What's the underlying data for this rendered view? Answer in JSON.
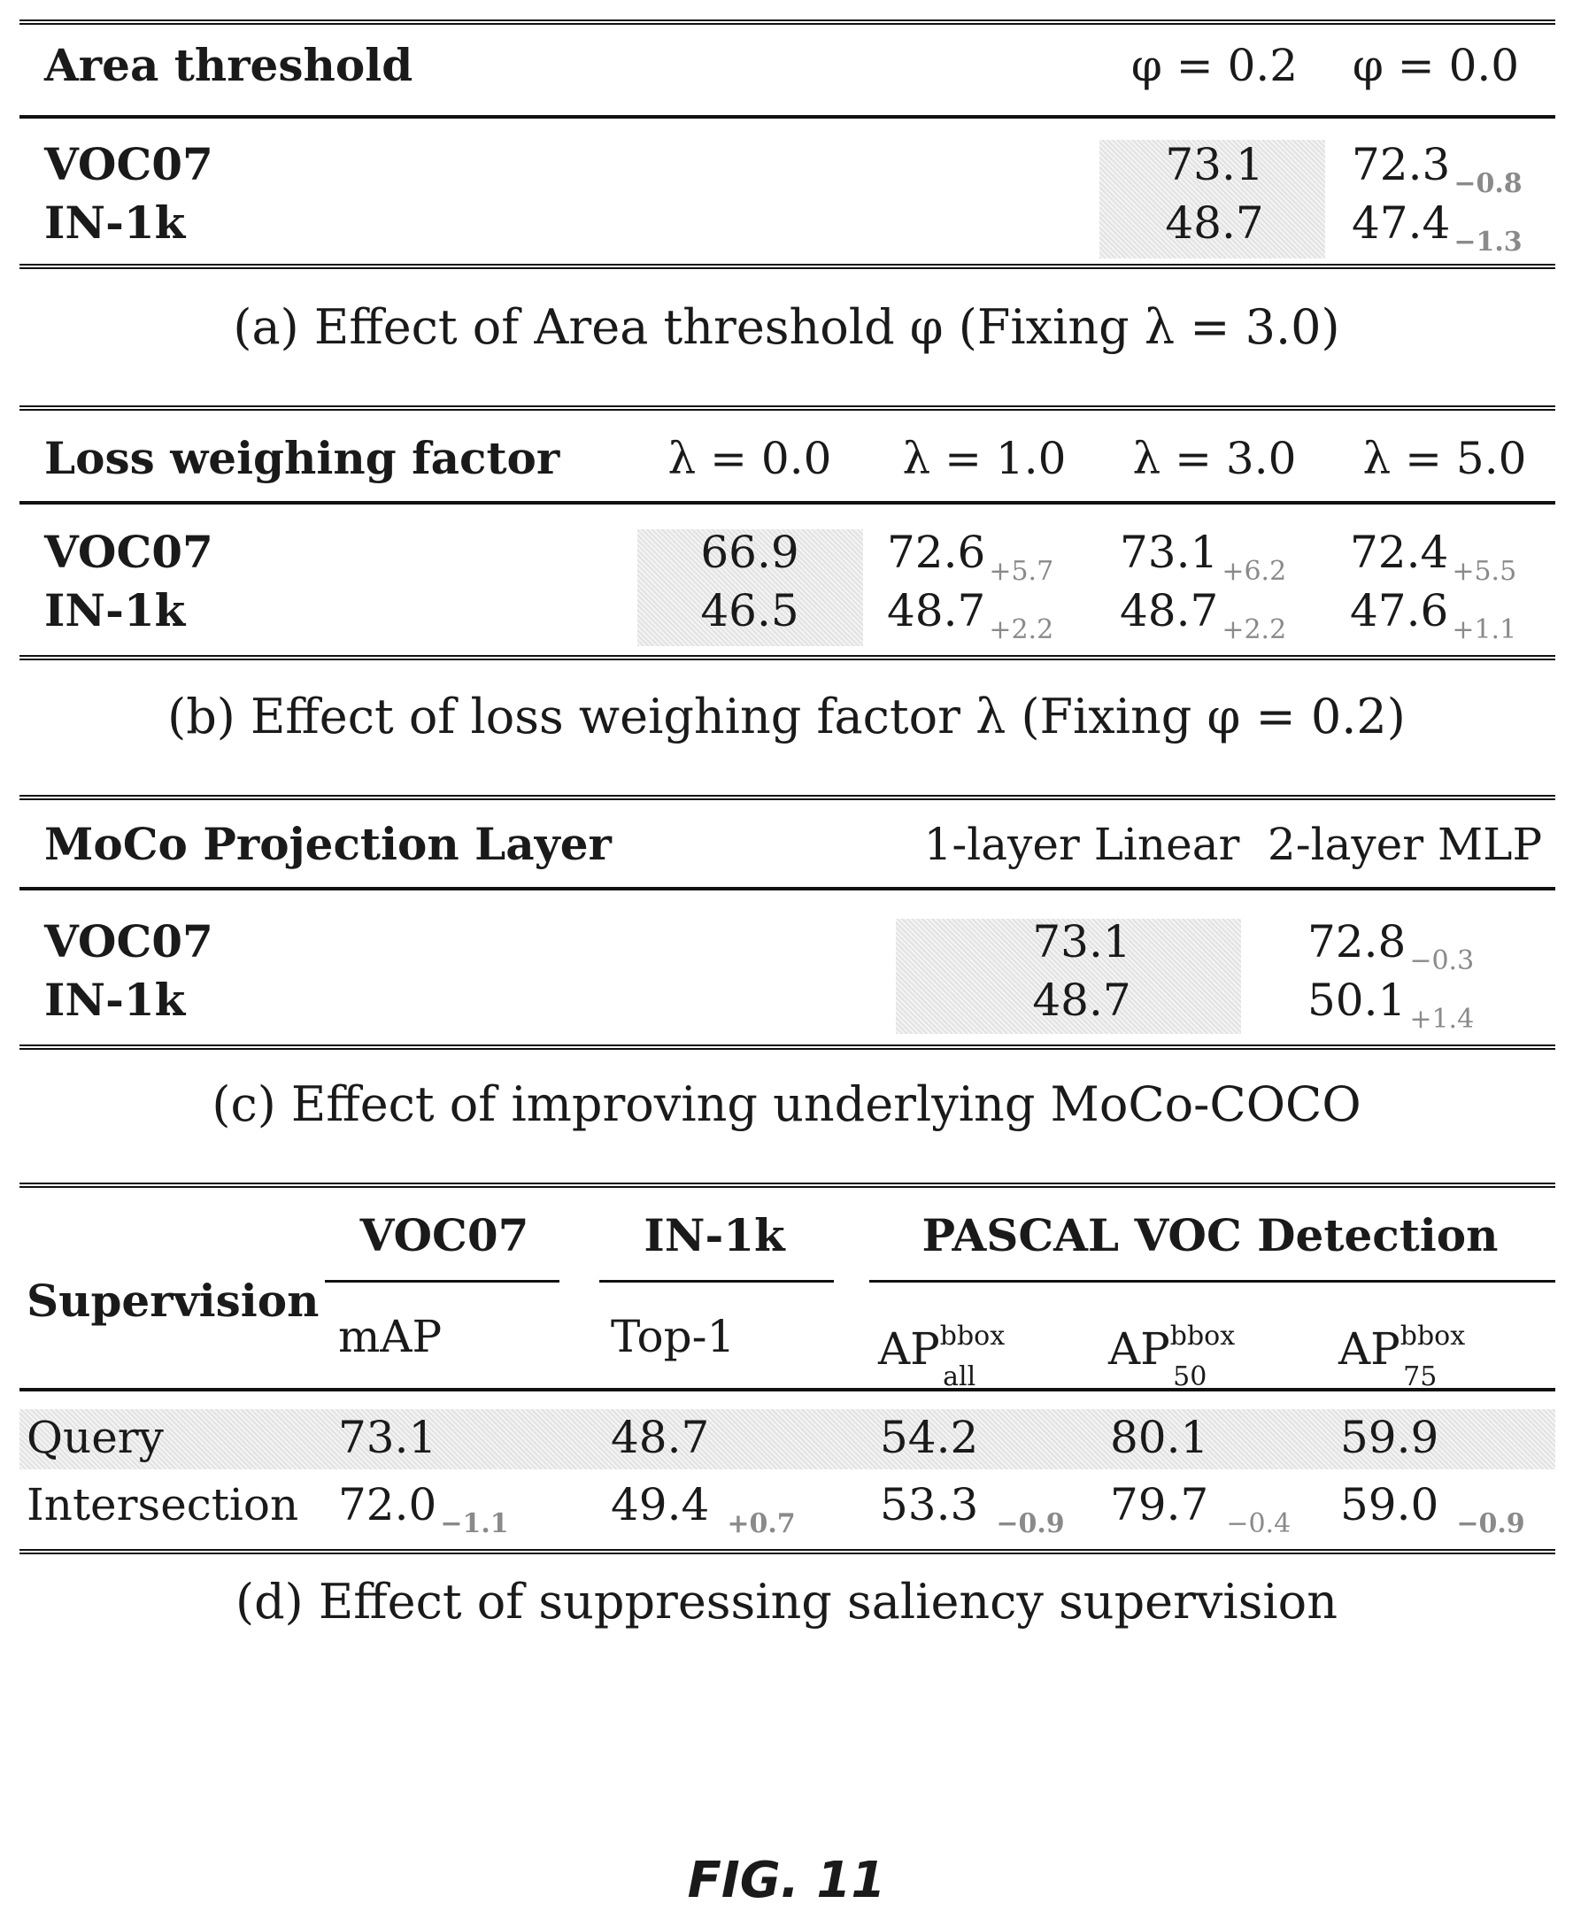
{
  "table_a": {
    "header": [
      "Area threshold",
      "φ = 0.2",
      "φ = 0.0"
    ],
    "rows": [
      {
        "label": "VOC07",
        "v1": "73.1",
        "v2": "72.3",
        "d2": "−0.8"
      },
      {
        "label": "IN-1k",
        "v1": "48.7",
        "v2": "47.4",
        "d2": "−1.3"
      }
    ],
    "caption": "(a) Effect of Area threshold φ (Fixing λ = 3.0)"
  },
  "table_b": {
    "header": [
      "Loss weighing factor",
      "λ = 0.0",
      "λ = 1.0",
      "λ = 3.0",
      "λ = 5.0"
    ],
    "rows": [
      {
        "label": "VOC07",
        "v1": "66.9",
        "v2": "72.6",
        "d2": "+5.7",
        "v3": "73.1",
        "d3": "+6.2",
        "v4": "72.4",
        "d4": "+5.5"
      },
      {
        "label": "IN-1k",
        "v1": "46.5",
        "v2": "48.7",
        "d2": "+2.2",
        "v3": "48.7",
        "d3": "+2.2",
        "v4": "47.6",
        "d4": "+1.1"
      }
    ],
    "caption": "(b) Effect of loss weighing factor λ (Fixing φ = 0.2)"
  },
  "table_c": {
    "header": [
      "MoCo Projection Layer",
      "1-layer Linear",
      "2-layer MLP"
    ],
    "rows": [
      {
        "label": "VOC07",
        "v1": "73.1",
        "v2": "72.8",
        "d2": "−0.3"
      },
      {
        "label": "IN-1k",
        "v1": "48.7",
        "v2": "50.1",
        "d2": "+1.4"
      }
    ],
    "caption": "(c) Effect of improving underlying MoCo-COCO"
  },
  "table_d": {
    "group_headers": [
      "VOC07",
      "IN-1k",
      "PASCAL VOC Detection"
    ],
    "row_header": "Supervision",
    "sub_headers": [
      "mAP",
      "Top-1",
      "AP",
      "AP",
      "AP"
    ],
    "ap_sup": "bbox",
    "ap_subs": [
      "all",
      "50",
      "75"
    ],
    "rows": [
      {
        "label": "Query",
        "vals": [
          "73.1",
          "48.7",
          "54.2",
          "80.1",
          "59.9"
        ],
        "deltas": [
          "",
          "",
          "",
          "",
          ""
        ]
      },
      {
        "label": "Intersection",
        "vals": [
          "72.0",
          "49.4",
          "53.3",
          "79.7",
          "59.0"
        ],
        "deltas": [
          "−1.1",
          "+0.7",
          "−0.9",
          "−0.4",
          "−0.9"
        ]
      }
    ],
    "caption": "(d) Effect of suppressing saliency supervision"
  },
  "figure_label": "FIG. 11"
}
